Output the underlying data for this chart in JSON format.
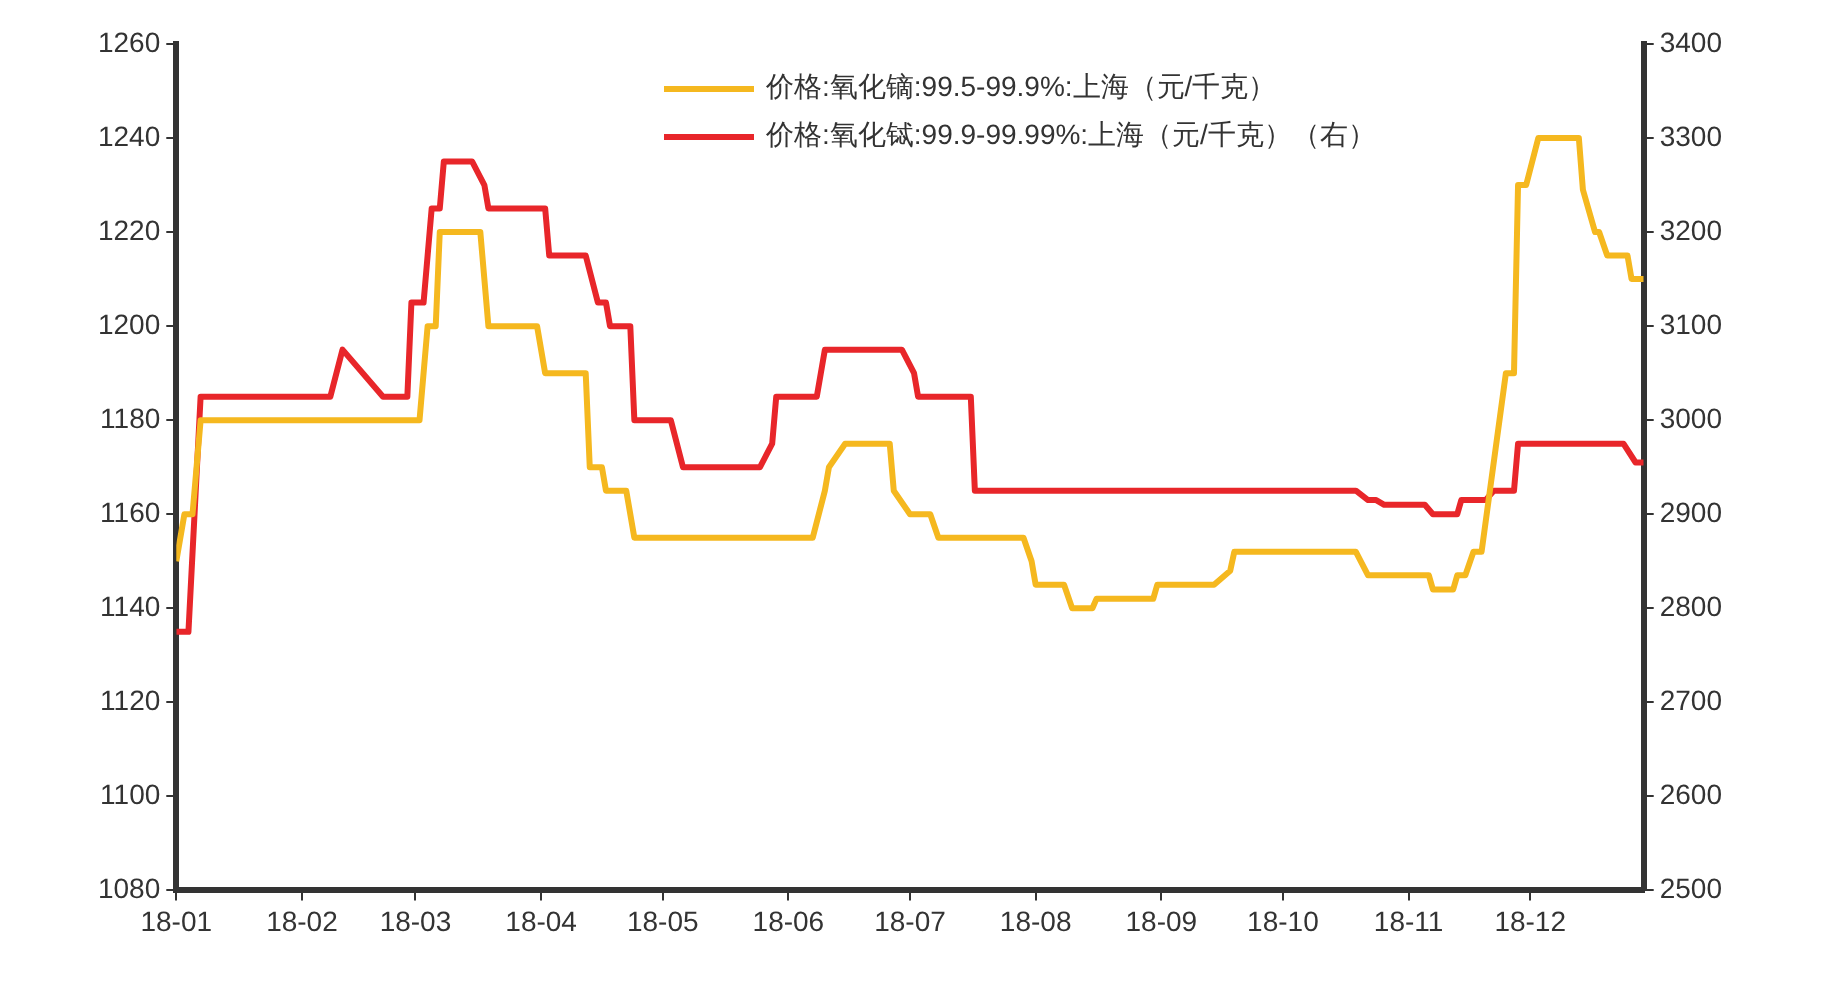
{
  "chart_data": {
    "type": "line",
    "legend": "top",
    "grid": false,
    "xlim": [
      "--01-01",
      "--12-29"
    ],
    "xticks": [
      {
        "value": "--01-01",
        "label": "18-01"
      },
      {
        "value": "--02-01",
        "label": "18-02"
      },
      {
        "value": "--03-01",
        "label": "18-03"
      },
      {
        "value": "--04-01",
        "label": "18-04"
      },
      {
        "value": "--05-01",
        "label": "18-05"
      },
      {
        "value": "--06-01",
        "label": "18-06"
      },
      {
        "value": "--07-01",
        "label": "18-07"
      },
      {
        "value": "--08-01",
        "label": "18-08"
      },
      {
        "value": "--09-01",
        "label": "18-09"
      },
      {
        "value": "--10-01",
        "label": "18-10"
      },
      {
        "value": "--11-01",
        "label": "18-11"
      },
      {
        "value": "--12-01",
        "label": "18-12"
      }
    ],
    "ylim": [
      1080,
      1260
    ],
    "yticks": [
      1080,
      1100,
      1120,
      1140,
      1160,
      1180,
      1200,
      1220,
      1240,
      1260
    ],
    "y2lim": [
      2500,
      3400
    ],
    "y2ticks": [
      2500,
      2600,
      2700,
      2800,
      2900,
      3000,
      3100,
      3200,
      3300,
      3400
    ],
    "series": [
      {
        "name": "价格:氧化镝:99.5-99.9%:上海（元/千克）",
        "color": "#f5b81f",
        "x": [
          "--01-01",
          "--01-03",
          "--01-05",
          "--01-07",
          "--03-02",
          "--03-04",
          "--03-06",
          "--03-07",
          "--03-17",
          "--03-19",
          "--03-31",
          "--04-02",
          "--04-12",
          "--04-13",
          "--04-16",
          "--04-17",
          "--04-22",
          "--04-24",
          "--06-07",
          "--06-10",
          "--06-11",
          "--06-15",
          "--06-26",
          "--06-27",
          "--07-01",
          "--07-06",
          "--07-08",
          "--07-29",
          "--07-31",
          "--08-01",
          "--08-08",
          "--08-10",
          "--08-15",
          "--08-16",
          "--08-30",
          "--08-31",
          "--09-14",
          "--09-18",
          "--09-19",
          "--10-19",
          "--10-22",
          "--11-06",
          "--11-07",
          "--11-12",
          "--11-13",
          "--11-15",
          "--11-17",
          "--11-19",
          "--11-25",
          "--11-27",
          "--11-28",
          "--11-30",
          "--12-03",
          "--12-13",
          "--12-14",
          "--12-17",
          "--12-18",
          "--12-20",
          "--12-25",
          "--12-26",
          "--12-29"
        ],
        "values": [
          1150,
          1160,
          1160,
          1180,
          1180,
          1200,
          1200,
          1220,
          1220,
          1200,
          1200,
          1190,
          1190,
          1170,
          1170,
          1165,
          1165,
          1155,
          1155,
          1165,
          1170,
          1175,
          1175,
          1165,
          1160,
          1160,
          1155,
          1155,
          1150,
          1145,
          1145,
          1140,
          1140,
          1142,
          1142,
          1145,
          1145,
          1148,
          1152,
          1152,
          1147,
          1147,
          1144,
          1144,
          1147,
          1147,
          1152,
          1152,
          1190,
          1190,
          1230,
          1230,
          1240,
          1240,
          1229,
          1220,
          1220,
          1215,
          1215,
          1210,
          1210
        ]
      },
      {
        "name": "价格:氧化铽:99.9-99.99%:上海（元/千克）（右）",
        "color": "#e8262a",
        "axis": "y2",
        "x": [
          "--01-01",
          "--01-04",
          "--01-07",
          "--02-08",
          "--02-11",
          "--02-21",
          "--02-27",
          "--02-28",
          "--03-03",
          "--03-05",
          "--03-07",
          "--03-08",
          "--03-15",
          "--03-18",
          "--03-19",
          "--04-02",
          "--04-03",
          "--04-12",
          "--04-15",
          "--04-17",
          "--04-18",
          "--04-23",
          "--04-24",
          "--05-03",
          "--05-06",
          "--05-25",
          "--05-28",
          "--05-29",
          "--06-08",
          "--06-10",
          "--06-29",
          "--07-02",
          "--07-03",
          "--07-16",
          "--07-17",
          "--10-19",
          "--10-22",
          "--10-24",
          "--10-26",
          "--11-05",
          "--11-07",
          "--11-13",
          "--11-14",
          "--11-20",
          "--11-22",
          "--11-27",
          "--11-28",
          "--12-24",
          "--12-27",
          "--12-29"
        ],
        "values": [
          2775,
          2775,
          3025,
          3025,
          3075,
          3025,
          3025,
          3125,
          3125,
          3225,
          3225,
          3275,
          3275,
          3250,
          3225,
          3225,
          3175,
          3175,
          3125,
          3125,
          3100,
          3100,
          3000,
          3000,
          2950,
          2950,
          2975,
          3025,
          3025,
          3075,
          3075,
          3050,
          3025,
          3025,
          2925,
          2925,
          2915,
          2915,
          2910,
          2910,
          2900,
          2900,
          2915,
          2915,
          2925,
          2925,
          2975,
          2975,
          2955,
          2955
        ]
      }
    ]
  }
}
